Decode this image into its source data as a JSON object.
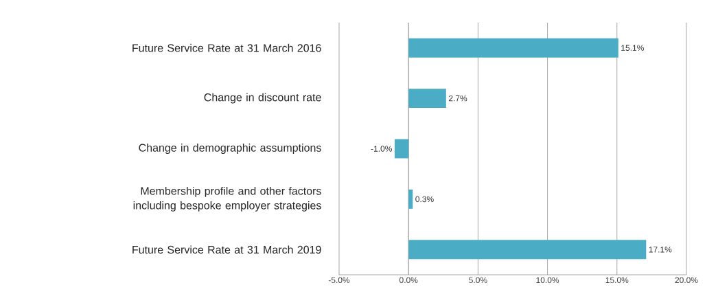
{
  "chart_data": {
    "type": "bar",
    "orientation": "horizontal",
    "categories": [
      "Future Service Rate at 31 March 2016",
      "Change in discount rate",
      "Change in demographic assumptions",
      "Membership profile and other factors including bespoke employer strategies",
      "Future Service Rate at 31 March 2019"
    ],
    "values": [
      15.1,
      2.7,
      -1.0,
      0.3,
      17.1
    ],
    "value_labels": [
      "15.1%",
      "2.7%",
      "-1.0%",
      "0.3%",
      "17.1%"
    ],
    "color": "#4bacc6",
    "xlim": [
      -5,
      20
    ],
    "xticks": [
      {
        "value": -5,
        "label": "-5.0%"
      },
      {
        "value": 0,
        "label": "0.0%"
      },
      {
        "value": 5,
        "label": "5.0%"
      },
      {
        "value": 10,
        "label": "10.0%"
      },
      {
        "value": 15,
        "label": "15.0%"
      },
      {
        "value": 20,
        "label": "20.0%"
      }
    ],
    "grid": "x"
  }
}
